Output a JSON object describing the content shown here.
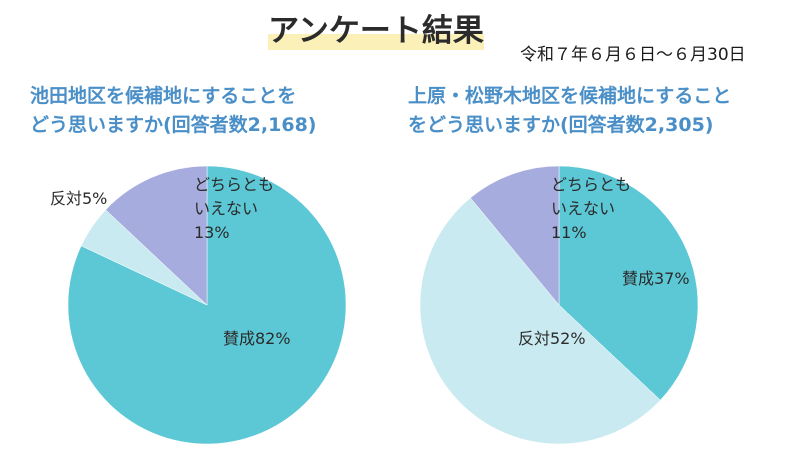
{
  "header": {
    "title": "アンケート結果",
    "date_range": "令和７年６月６日～６月30日"
  },
  "colors": {
    "agree": "#5cc8d6",
    "disagree": "#c9eaf0",
    "neutral": "#a6acdd",
    "title_blue": "#4a8fc7"
  },
  "chart_data": [
    {
      "type": "pie",
      "title_lines": [
        "池田地区を候補地にすることを",
        "どう思いますか(回答者数2,168)"
      ],
      "slices": [
        {
          "key": "agree",
          "name": "賛成",
          "value": 82,
          "label_lines": [
            "賛成82%"
          ]
        },
        {
          "key": "disagree",
          "name": "反対",
          "value": 5,
          "label_lines": [
            "反対5%"
          ]
        },
        {
          "key": "neutral",
          "name": "どちらともいえない",
          "value": 13,
          "label_lines": [
            "どちらとも",
            "いえない",
            "13%"
          ]
        }
      ]
    },
    {
      "type": "pie",
      "title_lines": [
        "上原・松野木地区を候補地にすること",
        "をどう思いますか(回答者数2,305)"
      ],
      "slices": [
        {
          "key": "agree",
          "name": "賛成",
          "value": 37,
          "label_lines": [
            "賛成37%"
          ]
        },
        {
          "key": "disagree",
          "name": "反対",
          "value": 52,
          "label_lines": [
            "反対52%"
          ]
        },
        {
          "key": "neutral",
          "name": "どちらともいえない",
          "value": 11,
          "label_lines": [
            "どちらとも",
            "いえない",
            "11%"
          ]
        }
      ]
    }
  ]
}
